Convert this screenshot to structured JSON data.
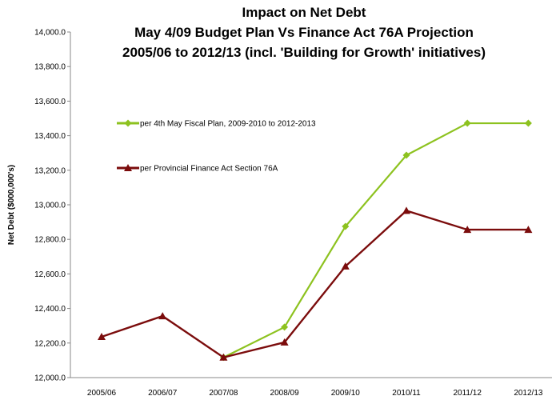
{
  "chart_data": {
    "type": "line",
    "title": "Impact on Net Debt",
    "subtitle": [
      "May 4/09 Budget Plan Vs Finance Act 76A Projection",
      "2005/06 to 2012/13 (incl. 'Building for Growth' initiatives)"
    ],
    "xlabel": "",
    "ylabel": "Net Debt ($000,000's)",
    "ylim": [
      12000,
      14000
    ],
    "yticks": [
      "12,000.0",
      "12,200.0",
      "12,400.0",
      "12,600.0",
      "12,800.0",
      "13,000.0",
      "13,200.0",
      "13,400.0",
      "13,600.0",
      "13,800.0",
      "14,000.0"
    ],
    "categories": [
      "2005/06",
      "2006/07",
      "2007/08",
      "2008/09",
      "2009/10",
      "2010/11",
      "2011/12",
      "2012/13"
    ],
    "grid": false,
    "legend_placement": "top-left inside",
    "series": [
      {
        "name": "per 4th May Fiscal Plan, 2009-2010 to 2012-2013",
        "color": "#8dc21f",
        "marker": "diamond",
        "values": [
          null,
          null,
          12117,
          12292,
          12875,
          13287,
          13472,
          13472
        ]
      },
      {
        "name": "per Provincial Finance Act Section 76A",
        "color": "#7b0c0c",
        "marker": "triangle",
        "values": [
          12236,
          12356,
          12117,
          12204,
          12644,
          12966,
          12856,
          12856
        ]
      }
    ]
  }
}
